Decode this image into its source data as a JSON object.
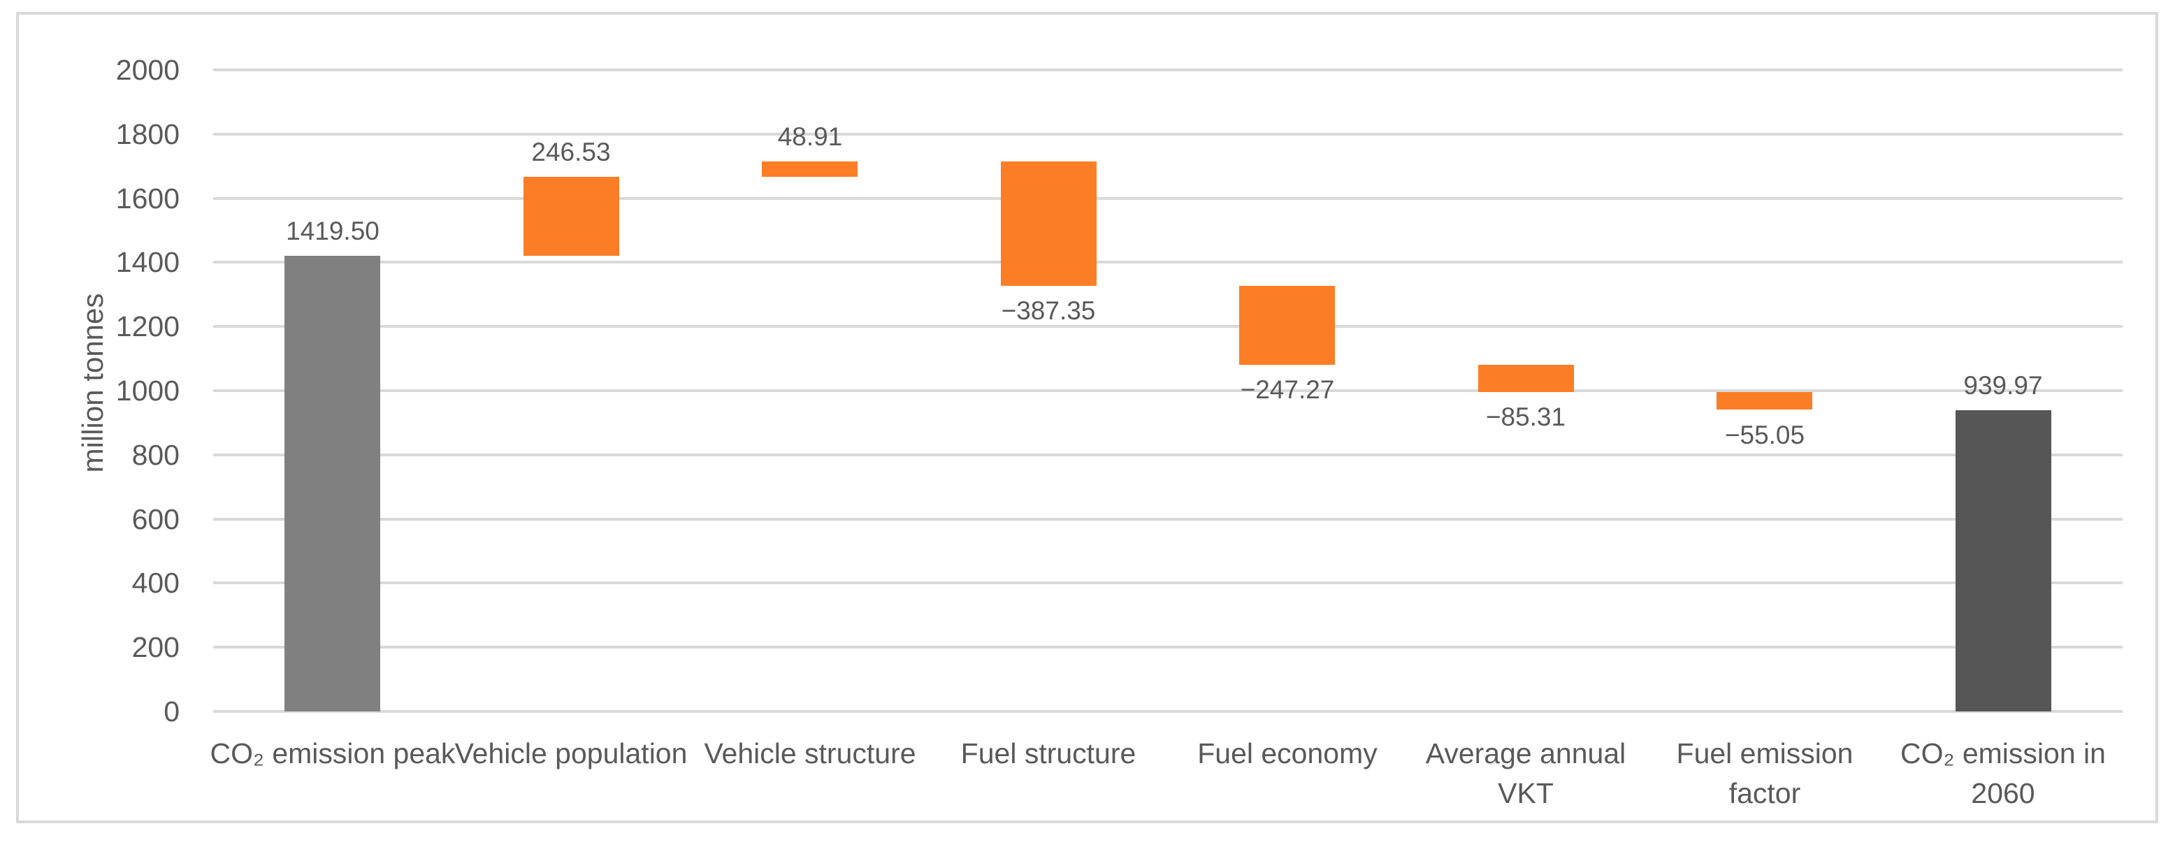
{
  "chart_data": {
    "type": "bar",
    "subtype": "waterfall",
    "title": "",
    "xlabel": "",
    "ylabel": "million tonnes",
    "ylim": [
      0,
      2000
    ],
    "ytick_interval": 200,
    "ytick_labels": [
      "0",
      "200",
      "400",
      "600",
      "800",
      "1000",
      "1200",
      "1400",
      "1600",
      "1800",
      "2000"
    ],
    "grid": "horizontal-only",
    "legend": "none",
    "categories": [
      "CO₂ emission peak",
      "Vehicle population",
      "Vehicle structure",
      "Fuel structure",
      "Fuel economy",
      "Average annual VKT",
      "Fuel emission factor",
      "CO₂ emission in 2060"
    ],
    "category_label_lines": [
      [
        "CO₂ emission peak"
      ],
      [
        "Vehicle population"
      ],
      [
        "Vehicle structure"
      ],
      [
        "Fuel structure"
      ],
      [
        "Fuel economy"
      ],
      [
        "Average annual",
        "VKT"
      ],
      [
        "Fuel emission",
        "factor"
      ],
      [
        "CO₂ emission in",
        "2060"
      ]
    ],
    "values": [
      1419.5,
      246.53,
      48.91,
      -387.35,
      -247.27,
      -85.31,
      -55.05,
      939.97
    ],
    "roles": [
      "total",
      "increase",
      "increase",
      "decrease",
      "decrease",
      "decrease",
      "decrease",
      "total"
    ],
    "data_labels": [
      "1419.50",
      "246.53",
      "48.91",
      "−387.35",
      "−247.27",
      "−85.31",
      "−55.05",
      "939.97"
    ],
    "colors": {
      "total_start": "#808080",
      "total_end": "#565656",
      "change": "#FB7E27",
      "gridline": "#D9D9D9",
      "border": "#D9D9D9",
      "axis_text": "#595959"
    }
  }
}
